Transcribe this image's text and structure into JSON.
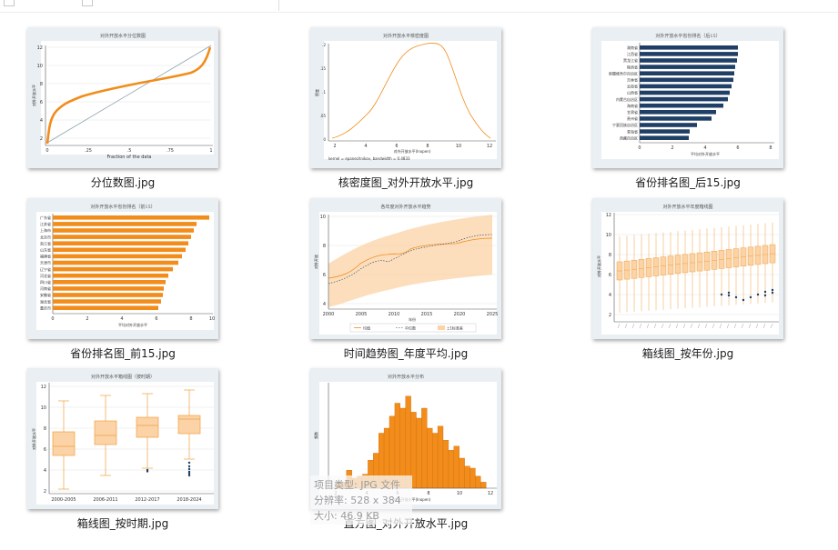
{
  "files": [
    {
      "id": "quantile",
      "name": "分位数图.jpg",
      "title": "对外开放水平分位数图",
      "x_label": "Fraction of the data",
      "y_label": "对外开放水平",
      "ticks_x": [
        "0",
        ".25",
        ".5",
        ".75",
        "1"
      ],
      "ticks_y": [
        "2",
        "4",
        "6",
        "8",
        "10",
        "12"
      ]
    },
    {
      "id": "kde",
      "name": "核密度图_对外开放水平.jpg",
      "title": "对外开放水平核密度图",
      "x_label": "对外开放水平(lnopen)",
      "y_label": "密度",
      "note": "kernel = epanechnikov, bandwidth = 0.4833",
      "ticks_x": [
        "2",
        "4",
        "6",
        "8",
        "10",
        "12"
      ],
      "ticks_y": [
        "0",
        ".05",
        ".1",
        ".15",
        ".2"
      ]
    },
    {
      "id": "rank_bottom",
      "name": "省份排名图_后15.jpg",
      "title": "对外开放水平省份排名（后15）",
      "x_label": "平均对外开放水平",
      "provinces": [
        "湖南省",
        "江西省",
        "黑龙江省",
        "陕西省",
        "新疆维吾尔自治区",
        "吉林省",
        "云南省",
        "山西省",
        "内蒙古自治区",
        "海南省",
        "甘肃省",
        "贵州省",
        "宁夏回族自治区",
        "青海省",
        "西藏自治区"
      ],
      "ticks_x": [
        "0",
        "2",
        "4",
        "6",
        "8"
      ]
    },
    {
      "id": "rank_top",
      "name": "省份排名图_前15.jpg",
      "title": "对外开放水平省份排名（前15）",
      "x_label": "平均对外开放水平",
      "provinces": [
        "广东省",
        "江苏省",
        "上海市",
        "北京市",
        "浙江省",
        "山东省",
        "福建省",
        "天津市",
        "辽宁省",
        "河北省",
        "四川省",
        "河南省",
        "安徽省",
        "湖北省",
        "重庆市"
      ],
      "ticks_x": [
        "0",
        "2",
        "4",
        "6",
        "8",
        "10"
      ]
    },
    {
      "id": "trend",
      "name": "时间趋势图_年度平均.jpg",
      "title": "各年度对外开放水平趋势",
      "x_label": "年份",
      "y_label": "对外开放",
      "legend": [
        "均值",
        "中位数",
        "±1标准差"
      ],
      "ticks_x": [
        "2000",
        "2005",
        "2010",
        "2015",
        "2020",
        "2025"
      ],
      "ticks_y": [
        "4",
        "6",
        "8",
        "10"
      ]
    },
    {
      "id": "box_year",
      "name": "箱线图_按年份.jpg",
      "title": "对外开放水平年度箱线图",
      "y_label": "对外开放水平",
      "ticks_y": [
        "2",
        "4",
        "6",
        "8",
        "10",
        "12"
      ]
    },
    {
      "id": "box_period",
      "name": "箱线图_按时期.jpg",
      "title": "对外开放水平箱线图（按时期）",
      "y_label": "对外开放水平",
      "periods": [
        "2000-2005",
        "2006-2011",
        "2012-2017",
        "2018-2024"
      ],
      "ticks_y": [
        "2",
        "4",
        "6",
        "8",
        "10",
        "12"
      ]
    },
    {
      "id": "hist",
      "name": "直方图_对外开放水平.jpg",
      "title": "对外开放水平分布",
      "x_label": "对外开放水平(lnopen)",
      "y_label": "频数",
      "ticks_x": [
        "2",
        "4",
        "6",
        "8",
        "10",
        "12"
      ]
    }
  ],
  "tooltip": {
    "type_line": "项目类型: JPG 文件",
    "resolution_line": "分辨率: 528 x 384",
    "size_line": "大小: 46.9 KB"
  },
  "colors": {
    "orange": "#f28c1a",
    "light_orange": "#fbd3a6",
    "navy": "#1f3f66",
    "gray": "#9aa6ac"
  }
}
